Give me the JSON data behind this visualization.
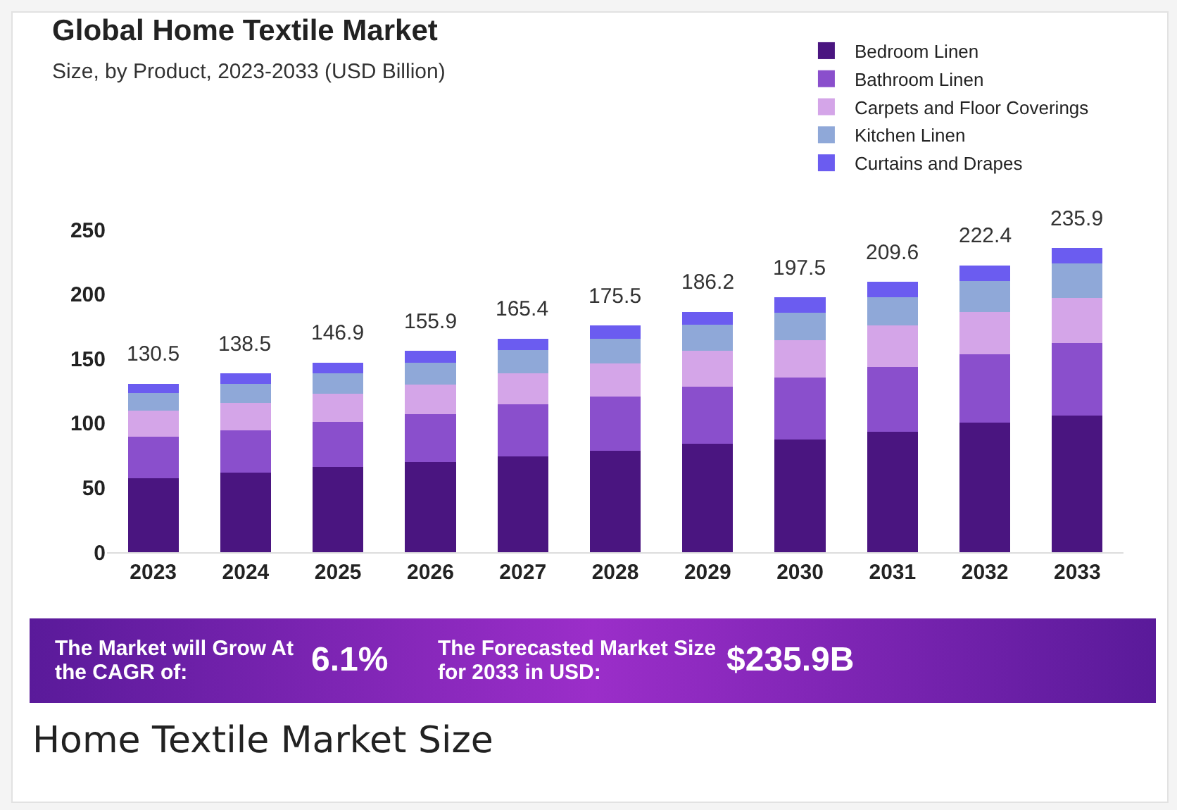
{
  "chart_data": {
    "type": "bar",
    "stacked": true,
    "title": "Global Home Textile Market",
    "subtitle": "Size, by Product, 2023-2033 (USD Billion)",
    "categories": [
      "2023",
      "2024",
      "2025",
      "2026",
      "2027",
      "2028",
      "2029",
      "2030",
      "2031",
      "2032",
      "2033"
    ],
    "series": [
      {
        "name": "Bedroom Linen",
        "color": "#4a1580",
        "values": [
          57.5,
          61.5,
          65.9,
          69.9,
          74.4,
          78.5,
          84.2,
          87.5,
          93.6,
          100.4,
          105.9
        ]
      },
      {
        "name": "Bathroom Linen",
        "color": "#8a4fcc",
        "values": [
          32,
          33,
          35,
          37,
          40,
          42,
          44,
          48,
          50,
          53,
          56
        ]
      },
      {
        "name": "Carpets and Floor Coverings",
        "color": "#d4a5e8",
        "values": [
          20,
          21,
          22,
          23,
          24,
          26,
          28,
          29,
          32,
          33,
          35
        ]
      },
      {
        "name": "Kitchen Linen",
        "color": "#8fa8d8",
        "values": [
          14,
          15,
          16,
          17,
          18,
          19,
          20,
          21,
          22,
          24,
          27
        ]
      },
      {
        "name": "Curtains and Drapes",
        "color": "#6b5cf0",
        "values": [
          7,
          8,
          8,
          9,
          9,
          10,
          10,
          12,
          12,
          12,
          12
        ]
      }
    ],
    "totals": [
      "130.5",
      "138.5",
      "146.9",
      "155.9",
      "165.4",
      "175.5",
      "186.2",
      "197.5",
      "209.6",
      "222.4",
      "235.9"
    ],
    "ylim": [
      0,
      250
    ],
    "yticks": [
      0,
      50,
      100,
      150,
      200,
      250
    ],
    "grid": false,
    "legend": "top right",
    "annotations": [
      "The Market will Grow At the CAGR of:",
      "6.1%",
      "The Forecasted Market Size for 2033 in USD:",
      "$235.9B",
      "Home Textile Market Size"
    ]
  }
}
